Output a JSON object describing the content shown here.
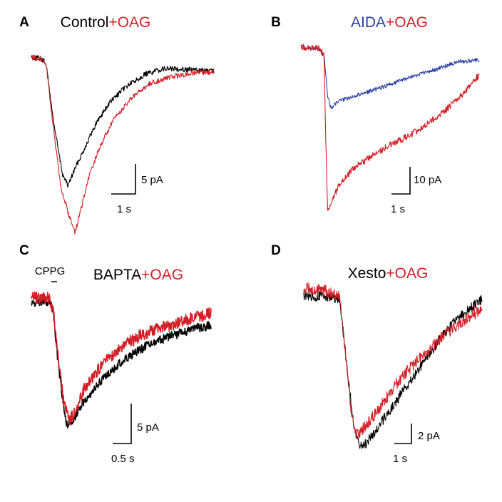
{
  "colors": {
    "control": "#000000",
    "oag": "#d21f26",
    "aida": "#2b3fa3"
  },
  "chart_data": [
    {
      "type": "line",
      "letter": "A",
      "title_parts": [
        {
          "text": "Control",
          "color": "#000000"
        },
        {
          "text": "+OAG",
          "color": "#d21f26"
        }
      ],
      "scale": {
        "amplitude": "5 pA",
        "time": "1 s"
      },
      "series": [
        {
          "color": "#000000",
          "noise": 0.018,
          "points": [
            [
              0,
              0.02
            ],
            [
              0.05,
              0.03
            ],
            [
              0.08,
              0.06
            ],
            [
              0.12,
              0.45
            ],
            [
              0.17,
              0.82
            ],
            [
              0.2,
              0.9
            ],
            [
              0.24,
              0.78
            ],
            [
              0.3,
              0.62
            ],
            [
              0.36,
              0.46
            ],
            [
              0.43,
              0.33
            ],
            [
              0.52,
              0.22
            ],
            [
              0.62,
              0.14
            ],
            [
              0.72,
              0.1
            ],
            [
              0.82,
              0.1
            ],
            [
              0.92,
              0.11
            ],
            [
              1,
              0.12
            ]
          ]
        },
        {
          "color": "#d21f26",
          "noise": 0.018,
          "points": [
            [
              0,
              0.02
            ],
            [
              0.05,
              0.03
            ],
            [
              0.08,
              0.06
            ],
            [
              0.12,
              0.5
            ],
            [
              0.16,
              0.9
            ],
            [
              0.2,
              1.08
            ],
            [
              0.24,
              1.22
            ],
            [
              0.28,
              1.02
            ],
            [
              0.32,
              0.82
            ],
            [
              0.38,
              0.62
            ],
            [
              0.45,
              0.45
            ],
            [
              0.55,
              0.3
            ],
            [
              0.65,
              0.2
            ],
            [
              0.75,
              0.16
            ],
            [
              0.88,
              0.13
            ],
            [
              1,
              0.12
            ]
          ]
        }
      ]
    },
    {
      "type": "line",
      "letter": "B",
      "title_parts": [
        {
          "text": "AIDA",
          "color": "#2b3fa3"
        },
        {
          "text": "+OAG",
          "color": "#d21f26"
        }
      ],
      "scale": {
        "amplitude": "10 pA",
        "time": "1 s"
      },
      "series": [
        {
          "color": "#2b3fa3",
          "noise": 0.012,
          "points": [
            [
              0,
              0.0
            ],
            [
              0.1,
              0.01
            ],
            [
              0.13,
              0.05
            ],
            [
              0.15,
              0.3
            ],
            [
              0.17,
              0.38
            ],
            [
              0.2,
              0.34
            ],
            [
              0.3,
              0.3
            ],
            [
              0.45,
              0.25
            ],
            [
              0.6,
              0.19
            ],
            [
              0.75,
              0.14
            ],
            [
              0.88,
              0.09
            ],
            [
              1,
              0.08
            ]
          ]
        },
        {
          "color": "#d21f26",
          "noise": 0.02,
          "points": [
            [
              0,
              0.0
            ],
            [
              0.1,
              0.01
            ],
            [
              0.13,
              0.05
            ],
            [
              0.14,
              0.6
            ],
            [
              0.15,
              1.0
            ],
            [
              0.17,
              0.95
            ],
            [
              0.22,
              0.84
            ],
            [
              0.3,
              0.74
            ],
            [
              0.4,
              0.67
            ],
            [
              0.5,
              0.6
            ],
            [
              0.6,
              0.55
            ],
            [
              0.7,
              0.48
            ],
            [
              0.8,
              0.4
            ],
            [
              0.9,
              0.3
            ],
            [
              1,
              0.17
            ]
          ]
        }
      ]
    },
    {
      "type": "line",
      "letter": "C",
      "title_parts": [
        {
          "text": "BAPTA",
          "color": "#000000"
        },
        {
          "text": "+OAG",
          "color": "#d21f26"
        }
      ],
      "annotation": "CPPG",
      "scale": {
        "amplitude": "5 pA",
        "time": "0.5 s"
      },
      "series": [
        {
          "color": "#000000",
          "noise": 0.03,
          "points": [
            [
              0,
              0.15
            ],
            [
              0.1,
              0.14
            ],
            [
              0.12,
              0.2
            ],
            [
              0.15,
              0.55
            ],
            [
              0.18,
              0.85
            ],
            [
              0.2,
              0.96
            ],
            [
              0.24,
              0.9
            ],
            [
              0.3,
              0.78
            ],
            [
              0.4,
              0.65
            ],
            [
              0.5,
              0.54
            ],
            [
              0.6,
              0.46
            ],
            [
              0.7,
              0.4
            ],
            [
              0.8,
              0.36
            ],
            [
              0.9,
              0.32
            ],
            [
              1,
              0.3
            ]
          ]
        },
        {
          "color": "#d21f26",
          "noise": 0.04,
          "points": [
            [
              0,
              0.12
            ],
            [
              0.1,
              0.12
            ],
            [
              0.12,
              0.18
            ],
            [
              0.15,
              0.5
            ],
            [
              0.18,
              0.8
            ],
            [
              0.21,
              0.92
            ],
            [
              0.25,
              0.84
            ],
            [
              0.3,
              0.7
            ],
            [
              0.4,
              0.55
            ],
            [
              0.5,
              0.44
            ],
            [
              0.6,
              0.37
            ],
            [
              0.7,
              0.32
            ],
            [
              0.8,
              0.29
            ],
            [
              0.9,
              0.25
            ],
            [
              1,
              0.22
            ]
          ]
        }
      ]
    },
    {
      "type": "line",
      "letter": "D",
      "title_parts": [
        {
          "text": "Xesto",
          "color": "#000000"
        },
        {
          "text": "+OAG",
          "color": "#d21f26"
        }
      ],
      "scale": {
        "amplitude": "2 pA",
        "time": "1 s"
      },
      "series": [
        {
          "color": "#000000",
          "noise": 0.03,
          "points": [
            [
              0,
              0.1
            ],
            [
              0.1,
              0.1
            ],
            [
              0.2,
              0.12
            ],
            [
              0.22,
              0.3
            ],
            [
              0.25,
              0.6
            ],
            [
              0.28,
              0.85
            ],
            [
              0.3,
              0.95
            ],
            [
              0.33,
              1.0
            ],
            [
              0.4,
              0.9
            ],
            [
              0.5,
              0.75
            ],
            [
              0.6,
              0.6
            ],
            [
              0.7,
              0.45
            ],
            [
              0.8,
              0.3
            ],
            [
              0.9,
              0.2
            ],
            [
              1,
              0.12
            ]
          ]
        },
        {
          "color": "#d21f26",
          "noise": 0.035,
          "points": [
            [
              0,
              0.05
            ],
            [
              0.1,
              0.06
            ],
            [
              0.2,
              0.1
            ],
            [
              0.22,
              0.3
            ],
            [
              0.25,
              0.6
            ],
            [
              0.27,
              0.82
            ],
            [
              0.29,
              0.92
            ],
            [
              0.32,
              0.9
            ],
            [
              0.4,
              0.8
            ],
            [
              0.5,
              0.65
            ],
            [
              0.6,
              0.52
            ],
            [
              0.7,
              0.42
            ],
            [
              0.8,
              0.32
            ],
            [
              0.9,
              0.24
            ],
            [
              1,
              0.18
            ]
          ]
        }
      ]
    }
  ]
}
